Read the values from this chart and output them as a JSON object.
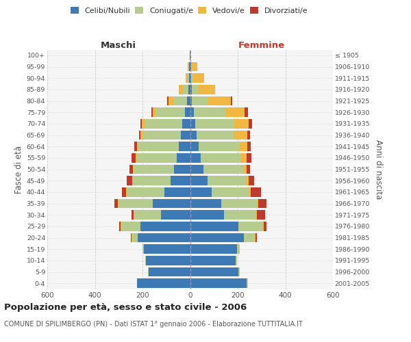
{
  "age_groups": [
    "0-4",
    "5-9",
    "10-14",
    "15-19",
    "20-24",
    "25-29",
    "30-34",
    "35-39",
    "40-44",
    "45-49",
    "50-54",
    "55-59",
    "60-64",
    "65-69",
    "70-74",
    "75-79",
    "80-84",
    "85-89",
    "90-94",
    "95-99",
    "100+"
  ],
  "birth_years": [
    "2001-2005",
    "1996-2000",
    "1991-1995",
    "1986-1990",
    "1981-1985",
    "1976-1980",
    "1971-1975",
    "1966-1970",
    "1961-1965",
    "1956-1960",
    "1951-1955",
    "1946-1950",
    "1941-1945",
    "1936-1940",
    "1931-1935",
    "1926-1930",
    "1921-1925",
    "1916-1920",
    "1911-1915",
    "1906-1910",
    "≤ 1905"
  ],
  "maschi": {
    "celibi": [
      222,
      175,
      185,
      195,
      220,
      210,
      122,
      158,
      108,
      82,
      68,
      55,
      48,
      38,
      32,
      22,
      12,
      8,
      3,
      3,
      2
    ],
    "coniugati": [
      2,
      2,
      3,
      6,
      22,
      78,
      112,
      142,
      158,
      158,
      168,
      168,
      168,
      158,
      158,
      122,
      58,
      22,
      6,
      3,
      0
    ],
    "vedovi": [
      0,
      0,
      0,
      0,
      3,
      3,
      3,
      3,
      3,
      3,
      3,
      6,
      6,
      12,
      12,
      12,
      22,
      18,
      10,
      4,
      0
    ],
    "divorziati": [
      0,
      0,
      0,
      0,
      3,
      6,
      9,
      14,
      16,
      22,
      16,
      16,
      12,
      6,
      6,
      6,
      3,
      0,
      0,
      0,
      0
    ]
  },
  "femmine": {
    "nubili": [
      236,
      202,
      192,
      196,
      226,
      202,
      142,
      132,
      92,
      72,
      56,
      46,
      36,
      26,
      22,
      16,
      6,
      6,
      3,
      3,
      2
    ],
    "coniugate": [
      6,
      6,
      6,
      12,
      42,
      102,
      132,
      148,
      158,
      162,
      168,
      168,
      172,
      158,
      162,
      132,
      66,
      26,
      9,
      4,
      0
    ],
    "vedove": [
      0,
      0,
      0,
      0,
      6,
      6,
      6,
      6,
      6,
      12,
      12,
      22,
      32,
      56,
      62,
      82,
      98,
      72,
      48,
      22,
      0
    ],
    "divorziate": [
      0,
      0,
      0,
      0,
      6,
      12,
      36,
      36,
      42,
      22,
      16,
      22,
      16,
      12,
      14,
      12,
      6,
      0,
      0,
      0,
      0
    ]
  },
  "colors": {
    "celibi_nubili": "#3d7ab5",
    "coniugati": "#b5cc8e",
    "vedovi": "#f0b840",
    "divorziati": "#c0392b"
  },
  "xlim": 600,
  "title": "Popolazione per età, sesso e stato civile - 2006",
  "subtitle": "COMUNE DI SPILIMBERGO (PN) - Dati ISTAT 1° gennaio 2006 - Elaborazione TUTTITALIA.IT",
  "ylabel_left": "Fasce di età",
  "ylabel_right": "Anni di nascita",
  "xlabel_maschi": "Maschi",
  "xlabel_femmine": "Femmine"
}
